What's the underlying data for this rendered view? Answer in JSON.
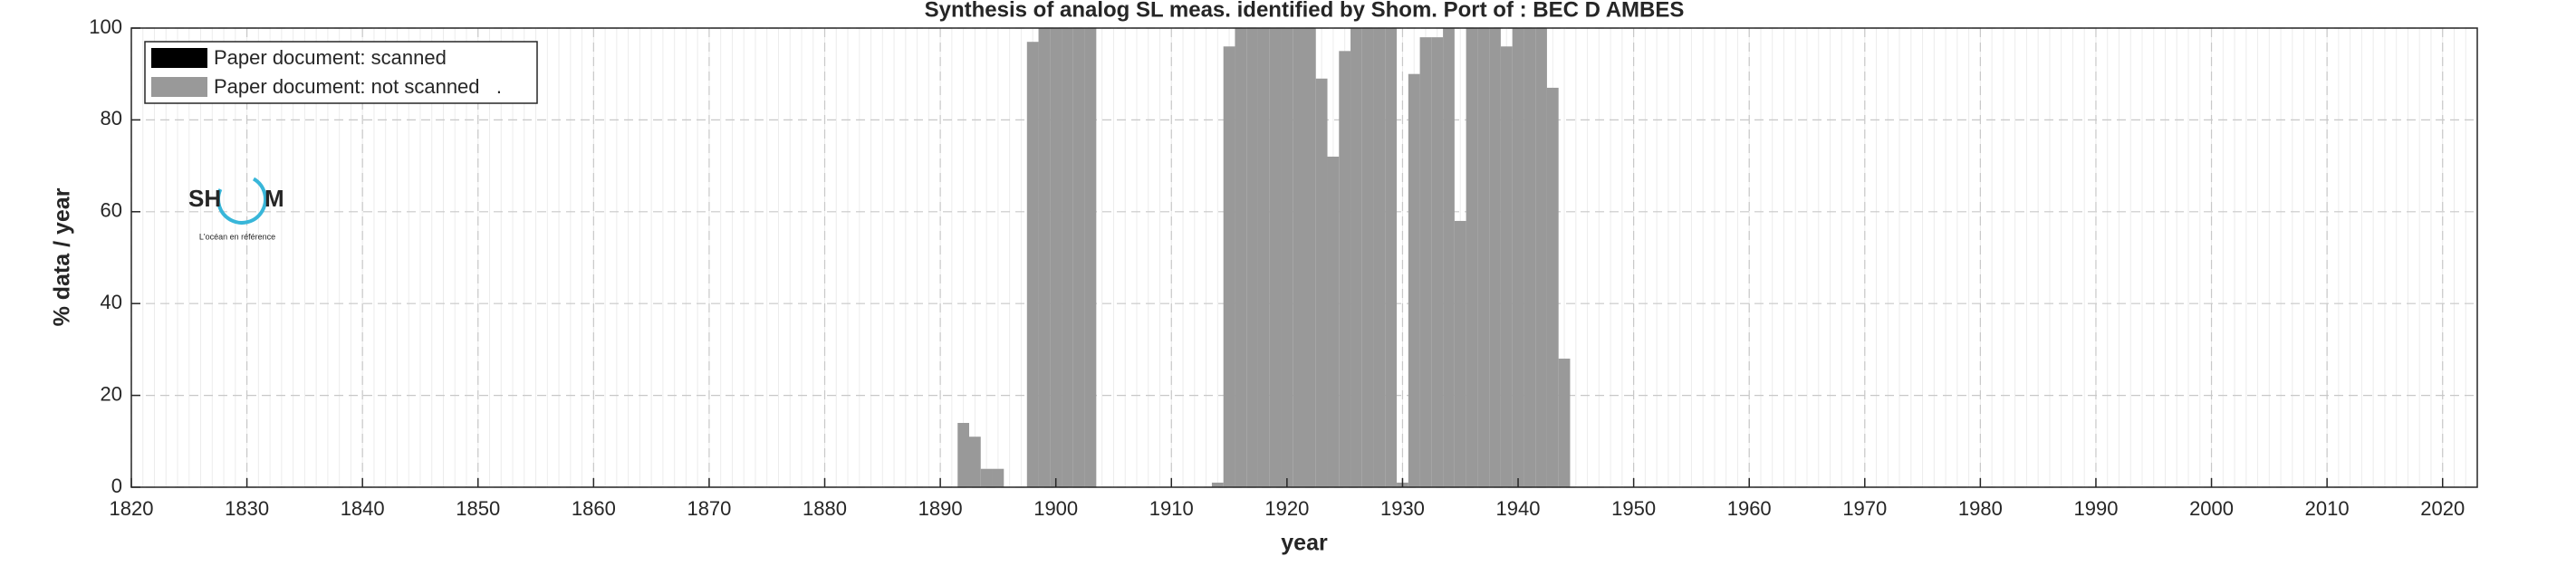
{
  "chart_data": {
    "type": "bar",
    "title": "Synthesis of analog SL meas. identified by Shom. Port of : BEC D AMBES",
    "x_label": "year",
    "y_label": "% data / year",
    "x": [
      1892,
      1893,
      1894,
      1895,
      1898,
      1899,
      1900,
      1901,
      1902,
      1903,
      1914,
      1915,
      1916,
      1917,
      1918,
      1919,
      1920,
      1921,
      1922,
      1923,
      1924,
      1925,
      1926,
      1927,
      1928,
      1929,
      1930,
      1931,
      1932,
      1933,
      1934,
      1935,
      1936,
      1937,
      1938,
      1939,
      1940,
      1941,
      1942,
      1943,
      1944
    ],
    "series": [
      {
        "name": "Paper document: scanned",
        "color": "#000000",
        "values": [
          null,
          null,
          null,
          null,
          null,
          null,
          null,
          null,
          null,
          null,
          null,
          null,
          null,
          null,
          null,
          null,
          null,
          null,
          null,
          null,
          null,
          null,
          null,
          null,
          null,
          null,
          null,
          null,
          null,
          null,
          null,
          null,
          null,
          null,
          null,
          null,
          null,
          null,
          null,
          null,
          null
        ]
      },
      {
        "name": "Paper document: not scanned   .",
        "color": "#999999",
        "values": [
          14,
          11,
          4,
          4,
          97,
          100,
          100,
          100,
          100,
          100,
          1,
          96,
          100,
          100,
          100,
          100,
          100,
          100,
          100,
          89,
          72,
          95,
          100,
          100,
          100,
          100,
          1,
          90,
          98,
          98,
          100,
          58,
          100,
          100,
          100,
          96,
          100,
          100,
          100,
          87,
          28
        ]
      }
    ],
    "xlim": [
      1820,
      2023
    ],
    "xticks": [
      1820,
      1830,
      1840,
      1850,
      1860,
      1870,
      1880,
      1890,
      1900,
      1910,
      1920,
      1930,
      1940,
      1950,
      1960,
      1970,
      1980,
      1990,
      2000,
      2010,
      2020
    ],
    "ylim": [
      0,
      100
    ],
    "yticks": [
      0,
      20,
      40,
      60,
      80,
      100
    ],
    "grid": true,
    "minor_grid": true,
    "legend": "upper left",
    "logo": {
      "left": "SH",
      "right": "M",
      "tagline": "L'océan en référence"
    }
  }
}
